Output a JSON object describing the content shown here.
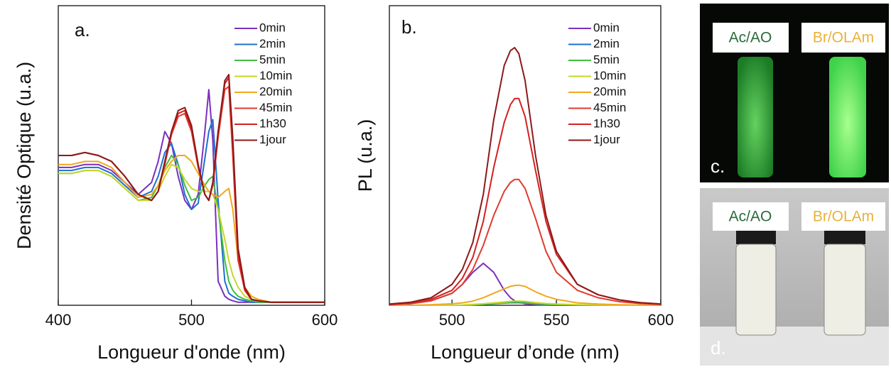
{
  "chart_data": [
    {
      "type": "line",
      "panel": "a.",
      "xlabel": "Longueur d'onde (nm)",
      "ylabel": "Densité Optique (u.a.)",
      "xlim": [
        400,
        600
      ],
      "xticks": [
        400,
        500,
        600
      ],
      "ylim": [
        0,
        1
      ],
      "legend": "upper right",
      "x": [
        400,
        410,
        420,
        430,
        440,
        450,
        460,
        470,
        475,
        480,
        485,
        490,
        495,
        500,
        505,
        510,
        513,
        516,
        520,
        525,
        528,
        531,
        535,
        540,
        545,
        550,
        560,
        570,
        580,
        590,
        600
      ],
      "series": [
        {
          "name": "0min",
          "color": "#7b2fbf",
          "values": [
            0.46,
            0.46,
            0.47,
            0.47,
            0.45,
            0.41,
            0.37,
            0.41,
            0.48,
            0.58,
            0.54,
            0.43,
            0.35,
            0.32,
            0.37,
            0.58,
            0.72,
            0.55,
            0.08,
            0.03,
            0.02,
            0.015,
            0.01,
            0.01,
            0.01,
            0.01,
            0.01,
            0.01,
            0.01,
            0.01,
            0.01
          ]
        },
        {
          "name": "2min",
          "color": "#1f6fd1",
          "values": [
            0.45,
            0.45,
            0.46,
            0.46,
            0.44,
            0.4,
            0.36,
            0.38,
            0.43,
            0.51,
            0.54,
            0.47,
            0.37,
            0.32,
            0.34,
            0.49,
            0.58,
            0.62,
            0.35,
            0.08,
            0.04,
            0.03,
            0.02,
            0.015,
            0.01,
            0.01,
            0.01,
            0.01,
            0.01,
            0.01,
            0.01
          ]
        },
        {
          "name": "5min",
          "color": "#3fbf3f",
          "values": [
            0.44,
            0.44,
            0.45,
            0.45,
            0.43,
            0.39,
            0.35,
            0.36,
            0.4,
            0.46,
            0.5,
            0.47,
            0.4,
            0.35,
            0.36,
            0.4,
            0.42,
            0.43,
            0.32,
            0.15,
            0.08,
            0.05,
            0.03,
            0.02,
            0.015,
            0.01,
            0.01,
            0.01,
            0.01,
            0.01,
            0.01
          ]
        },
        {
          "name": "10min",
          "color": "#c8d62a",
          "values": [
            0.44,
            0.44,
            0.45,
            0.45,
            0.43,
            0.39,
            0.35,
            0.35,
            0.38,
            0.43,
            0.47,
            0.46,
            0.42,
            0.39,
            0.38,
            0.38,
            0.38,
            0.37,
            0.32,
            0.22,
            0.15,
            0.1,
            0.06,
            0.03,
            0.02,
            0.015,
            0.01,
            0.01,
            0.01,
            0.01,
            0.01
          ]
        },
        {
          "name": "20min",
          "color": "#f0a81c",
          "values": [
            0.47,
            0.47,
            0.48,
            0.48,
            0.46,
            0.41,
            0.36,
            0.37,
            0.4,
            0.45,
            0.48,
            0.5,
            0.5,
            0.48,
            0.44,
            0.4,
            0.38,
            0.37,
            0.36,
            0.38,
            0.39,
            0.32,
            0.15,
            0.06,
            0.03,
            0.02,
            0.01,
            0.01,
            0.01,
            0.01,
            0.01
          ]
        },
        {
          "name": "45min",
          "color": "#e03a2e",
          "values": [
            0.5,
            0.5,
            0.51,
            0.5,
            0.48,
            0.43,
            0.37,
            0.35,
            0.38,
            0.47,
            0.57,
            0.63,
            0.64,
            0.58,
            0.46,
            0.37,
            0.35,
            0.4,
            0.56,
            0.72,
            0.73,
            0.5,
            0.15,
            0.05,
            0.02,
            0.015,
            0.01,
            0.01,
            0.01,
            0.01,
            0.01
          ]
        },
        {
          "name": "1h30",
          "color": "#d42020",
          "values": [
            0.5,
            0.5,
            0.51,
            0.5,
            0.48,
            0.43,
            0.37,
            0.35,
            0.38,
            0.48,
            0.58,
            0.64,
            0.65,
            0.59,
            0.47,
            0.37,
            0.35,
            0.41,
            0.58,
            0.74,
            0.76,
            0.53,
            0.17,
            0.05,
            0.02,
            0.015,
            0.01,
            0.01,
            0.01,
            0.01,
            0.01
          ]
        },
        {
          "name": "1jour",
          "color": "#8b1a1a",
          "values": [
            0.5,
            0.5,
            0.51,
            0.5,
            0.48,
            0.43,
            0.37,
            0.35,
            0.38,
            0.48,
            0.58,
            0.65,
            0.66,
            0.6,
            0.47,
            0.37,
            0.35,
            0.41,
            0.58,
            0.75,
            0.77,
            0.56,
            0.19,
            0.06,
            0.02,
            0.015,
            0.01,
            0.01,
            0.01,
            0.01,
            0.01
          ]
        }
      ]
    },
    {
      "type": "line",
      "panel": "b.",
      "xlabel": "Longueur d’onde (nm)",
      "ylabel": "PL (u.a.)",
      "xlim": [
        470,
        600
      ],
      "xticks": [
        500,
        550,
        600
      ],
      "ylim": [
        0,
        1
      ],
      "legend": "upper right",
      "x": [
        470,
        480,
        490,
        500,
        505,
        510,
        515,
        520,
        525,
        528,
        530,
        532,
        535,
        540,
        545,
        550,
        560,
        570,
        580,
        590,
        600
      ],
      "series": [
        {
          "name": "0min",
          "color": "#7b2fbf",
          "values": [
            0,
            0.005,
            0.015,
            0.04,
            0.07,
            0.11,
            0.14,
            0.11,
            0.05,
            0.025,
            0.015,
            0.01,
            0.005,
            0.002,
            0.001,
            0,
            0,
            0,
            0,
            0,
            0
          ]
        },
        {
          "name": "2min",
          "color": "#1f6fd1",
          "values": [
            0,
            0,
            0,
            0,
            0,
            0.002,
            0.004,
            0.006,
            0.008,
            0.009,
            0.01,
            0.01,
            0.009,
            0.006,
            0.004,
            0.002,
            0.001,
            0,
            0,
            0,
            0
          ]
        },
        {
          "name": "5min",
          "color": "#3fbf3f",
          "values": [
            0,
            0,
            0,
            0,
            0,
            0.002,
            0.003,
            0.005,
            0.007,
            0.008,
            0.008,
            0.008,
            0.007,
            0.005,
            0.003,
            0.002,
            0.001,
            0,
            0,
            0,
            0
          ]
        },
        {
          "name": "10min",
          "color": "#c8d62a",
          "values": [
            0,
            0,
            0,
            0,
            0.001,
            0.003,
            0.005,
            0.008,
            0.011,
            0.013,
            0.014,
            0.014,
            0.013,
            0.009,
            0.006,
            0.004,
            0.002,
            0.001,
            0,
            0,
            0
          ]
        },
        {
          "name": "20min",
          "color": "#f0a81c",
          "values": [
            0,
            0,
            0.002,
            0.005,
            0.008,
            0.014,
            0.025,
            0.04,
            0.055,
            0.063,
            0.066,
            0.067,
            0.063,
            0.045,
            0.03,
            0.02,
            0.008,
            0.004,
            0.002,
            0.001,
            0
          ]
        },
        {
          "name": "45min",
          "color": "#e03a2e",
          "values": [
            0.002,
            0.006,
            0.015,
            0.04,
            0.07,
            0.12,
            0.2,
            0.3,
            0.38,
            0.41,
            0.42,
            0.42,
            0.39,
            0.29,
            0.18,
            0.11,
            0.05,
            0.025,
            0.012,
            0.006,
            0.003
          ]
        },
        {
          "name": "1h30",
          "color": "#d42020",
          "values": [
            0.003,
            0.008,
            0.02,
            0.05,
            0.09,
            0.16,
            0.28,
            0.46,
            0.61,
            0.67,
            0.69,
            0.69,
            0.63,
            0.45,
            0.28,
            0.17,
            0.07,
            0.035,
            0.018,
            0.009,
            0.004
          ]
        },
        {
          "name": "1jour",
          "color": "#8b1a1a",
          "values": [
            0.004,
            0.01,
            0.025,
            0.07,
            0.12,
            0.21,
            0.37,
            0.62,
            0.8,
            0.85,
            0.86,
            0.84,
            0.75,
            0.5,
            0.3,
            0.18,
            0.07,
            0.035,
            0.018,
            0.009,
            0.004
          ]
        }
      ]
    }
  ],
  "photos": [
    {
      "panel": "c.",
      "labels": [
        "Ac/AO",
        "Br/OLAm"
      ]
    },
    {
      "panel": "d.",
      "labels": [
        "Ac/AO",
        "Br/OLAm"
      ]
    }
  ]
}
